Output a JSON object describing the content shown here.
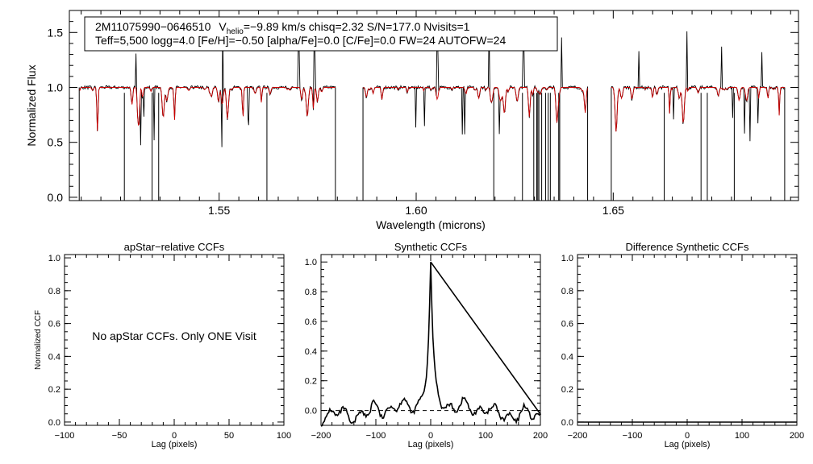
{
  "colors": {
    "observed": "#000000",
    "model": "#cc0000",
    "axis": "#000000"
  },
  "chart_data": [
    {
      "type": "line",
      "title": "",
      "xlabel": "Wavelength (microns)",
      "ylabel": "Normalized Flux",
      "xlim": [
        1.512,
        1.697
      ],
      "ylim": [
        -0.03,
        1.7
      ],
      "xticks": [
        "1.55",
        "1.60",
        "1.65"
      ],
      "yticks": [
        "0.0",
        "0.5",
        "1.0",
        "1.5"
      ],
      "chips": [
        [
          1.514,
          1.58
        ],
        [
          1.586,
          1.644
        ],
        [
          1.649,
          1.694
        ]
      ],
      "series": [
        {
          "name": "",
          "role": "observed",
          "color": "#000000"
        },
        {
          "name": "",
          "role": "model",
          "color": "#cc0000"
        }
      ],
      "annotation": {
        "line1_id": "2M11075990−0646510",
        "line1_v": "V",
        "line1_sub": "helio",
        "line1_rest": "=−9.89 km/s  chisq=2.32  S/N=177.0  Nvisits=1",
        "line2": "Teff=5,500 logg=4.0 [Fe/H]=−0.50 [alpha/Fe]=0.0 [C/Fe]=0.0 FW=24 AUTOFW=24"
      }
    },
    {
      "type": "line",
      "title": "apStar−relative CCFs",
      "xlabel": "Lag (pixels)",
      "ylabel": "Normalized CCF",
      "xlim": [
        -100,
        100
      ],
      "ylim": [
        -0.02,
        1.02
      ],
      "xticks": [
        "−100",
        "−50",
        "0",
        "50",
        "100"
      ],
      "yticks": [
        "0.0",
        "0.2",
        "0.4",
        "0.6",
        "0.8",
        "1.0"
      ],
      "message": "No apStar CCFs.  Only ONE Visit",
      "series": []
    },
    {
      "type": "line",
      "title": "Synthetic CCFs",
      "xlabel": "Lag (pixels)",
      "ylabel": "",
      "xlim": [
        -200,
        200
      ],
      "ylim": [
        -0.1,
        1.05
      ],
      "xticks": [
        "−200",
        "−100",
        "0",
        "100",
        "200"
      ],
      "yticks": [
        "0.0",
        "0.2",
        "0.4",
        "0.6",
        "0.8",
        "1.0"
      ],
      "zero_line": "dashed",
      "series": [
        {
          "name": "",
          "peak_lag": 0,
          "peak_value": 1.0,
          "color": "#000000"
        }
      ]
    },
    {
      "type": "line",
      "title": "Difference Synthetic CCFs",
      "xlabel": "Lag (pixels)",
      "ylabel": "",
      "xlim": [
        -200,
        200
      ],
      "ylim": [
        -0.02,
        1.02
      ],
      "xticks": [
        "−200",
        "−100",
        "0",
        "100",
        "200"
      ],
      "yticks": [
        "0.0",
        "0.2",
        "0.4",
        "0.6",
        "0.8",
        "1.0"
      ],
      "series": [
        {
          "name": "",
          "values": "flat at 0.0",
          "color": "#000000"
        }
      ]
    }
  ]
}
